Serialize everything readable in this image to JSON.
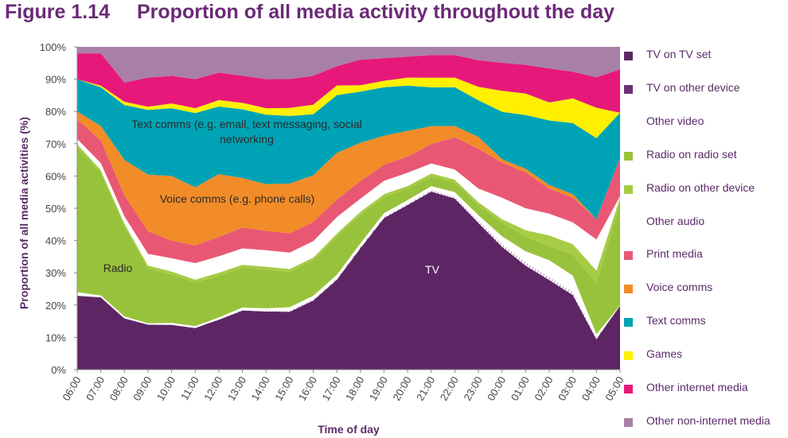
{
  "figure": {
    "number": "Figure 1.14",
    "title": "Proportion of all media activity throughout the day"
  },
  "colors": {
    "title": "#6b2a77",
    "axis_text": "#5b2a68"
  },
  "chart_data": {
    "type": "area",
    "stacked": true,
    "title": "Proportion of all media activity throughout the day",
    "xlabel": "Time of day",
    "ylabel": "Proportion of all media activities (%)",
    "ylim": [
      0,
      100
    ],
    "y_ticks": [
      "0%",
      "10%",
      "20%",
      "30%",
      "40%",
      "50%",
      "60%",
      "70%",
      "80%",
      "90%",
      "100%"
    ],
    "categories": [
      "06:00",
      "07:00",
      "08:00",
      "09:00",
      "10:00",
      "11:00",
      "12:00",
      "13:00",
      "14:00",
      "15:00",
      "16:00",
      "17:00",
      "18:00",
      "19:00",
      "20:00",
      "21:00",
      "22:00",
      "23:00",
      "00:00",
      "01:00",
      "02:00",
      "03:00",
      "04:00",
      "05:00"
    ],
    "series": [
      {
        "name": "TV on TV set",
        "color": "#5e2565",
        "values": [
          23,
          22.5,
          16,
          14,
          14,
          13,
          15.5,
          18.5,
          18,
          18,
          21.5,
          28,
          38,
          47,
          51,
          55,
          53,
          44,
          35,
          29,
          25,
          21,
          9,
          20
        ]
      },
      {
        "name": "TV on other device",
        "color": "#6d3078",
        "values": [
          0,
          0,
          0,
          0,
          0,
          0,
          0.2,
          0.3,
          0.3,
          0.5,
          0.5,
          0.5,
          0.5,
          0.5,
          0.5,
          0.7,
          0.7,
          0.8,
          1,
          1,
          1,
          1,
          0.5,
          0
        ]
      },
      {
        "name": "Other video",
        "color": "#ffffff",
        "values": [
          1,
          0.5,
          0.5,
          0.3,
          0.5,
          0.5,
          0.5,
          0.6,
          0.7,
          0.9,
          1,
          1,
          1,
          1,
          1,
          1,
          1.3,
          1.5,
          2,
          3,
          4.5,
          4.5,
          1,
          0
        ]
      },
      {
        "name": "Radio on radio set",
        "color": "#99c23c",
        "values": [
          45,
          38,
          28,
          17,
          15,
          13.5,
          13,
          12.5,
          12,
          11,
          11,
          12,
          9,
          5,
          3.5,
          3,
          3,
          3,
          4,
          4,
          4,
          6,
          15,
          32
        ]
      },
      {
        "name": "Radio on other device",
        "color": "#a6cc44",
        "values": [
          1,
          1,
          1,
          1,
          1,
          1,
          1,
          1,
          1,
          1,
          1,
          1,
          1,
          1,
          1,
          1,
          1,
          1,
          1,
          2,
          3,
          3,
          4,
          2
        ]
      },
      {
        "name": "Other audio",
        "color": "#ffffff",
        "values": [
          1.5,
          2,
          2,
          3.5,
          4,
          5,
          5,
          5,
          5,
          5,
          5,
          5,
          4,
          4,
          4,
          3,
          3,
          4,
          6,
          6,
          6,
          6,
          9,
          0
        ]
      },
      {
        "name": "Print media",
        "color": "#e85874",
        "values": [
          6,
          7,
          6.5,
          7,
          5.5,
          5.5,
          6,
          6.5,
          6,
          6,
          6,
          5.5,
          5.5,
          5,
          5,
          6,
          10,
          12,
          10,
          10,
          7,
          7,
          6,
          12
        ]
      },
      {
        "name": "Voice comms",
        "color": "#f28c28",
        "values": [
          2.5,
          4.5,
          11,
          17.5,
          20,
          18,
          19.5,
          15.5,
          14.5,
          15.5,
          14.5,
          14.5,
          12,
          9,
          8,
          5.5,
          3.5,
          3.5,
          1,
          1,
          1,
          1,
          0,
          0
        ]
      },
      {
        "name": "Text comms",
        "color": "#00a3b5",
        "values": [
          10,
          12,
          17,
          20,
          21,
          23,
          21,
          21.5,
          21.5,
          21,
          19,
          18,
          16,
          15,
          14,
          12,
          12,
          11,
          13.5,
          15,
          18,
          20,
          24,
          14
        ]
      },
      {
        "name": "Games",
        "color": "#ffef00",
        "values": [
          0,
          0.5,
          1,
          1,
          1.5,
          1.5,
          2,
          2,
          2,
          2.5,
          3,
          3,
          2,
          2,
          2.5,
          3,
          3,
          4,
          6,
          6,
          5,
          7,
          9,
          0
        ]
      },
      {
        "name": "Other internet media",
        "color": "#e6197a",
        "values": [
          8,
          10,
          6,
          9,
          8.5,
          9,
          8.5,
          8.5,
          9,
          9,
          9,
          6,
          8,
          7,
          6.5,
          7,
          7,
          8,
          8,
          8,
          9.5,
          7.5,
          9,
          13.5
        ]
      },
      {
        "name": "Other non-internet media",
        "color": "#a880a5",
        "values": [
          2,
          2,
          11,
          9.5,
          9,
          10,
          8,
          9,
          10,
          10,
          9,
          6,
          4,
          3.5,
          3,
          2.5,
          2.5,
          4,
          4.5,
          5,
          6,
          7,
          9,
          7
        ]
      }
    ],
    "annotations": [
      {
        "id": "text-comms",
        "lines": [
          "Text comms (e.g. email, text messaging, social",
          "networking"
        ]
      },
      {
        "id": "voice-comms",
        "lines": [
          "Voice comms (e.g. phone calls)"
        ]
      },
      {
        "id": "radio",
        "lines": [
          "Radio"
        ]
      },
      {
        "id": "tv",
        "lines": [
          "TV"
        ]
      }
    ]
  }
}
